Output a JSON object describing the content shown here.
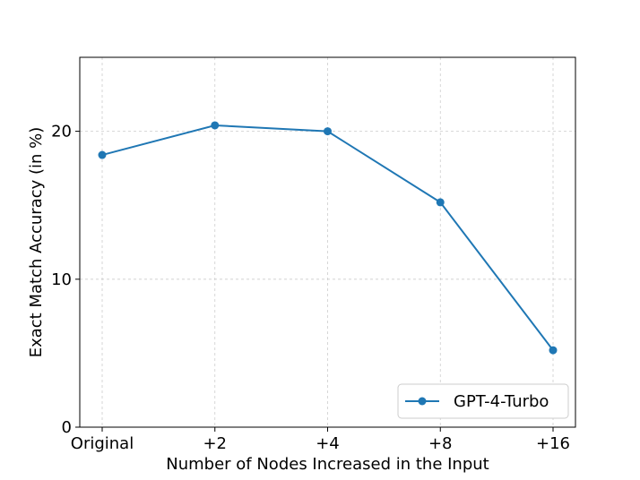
{
  "chart_data": {
    "type": "line",
    "categories": [
      "Original",
      "+2",
      "+4",
      "+8",
      "+16"
    ],
    "series": [
      {
        "name": "GPT-4-Turbo",
        "values": [
          18.4,
          20.4,
          20.0,
          15.2,
          5.2
        ],
        "color": "#1f77b4",
        "marker": "circle"
      }
    ],
    "xlabel": "Number of Nodes Increased in the Input",
    "ylabel": "Exact Match Accuracy (in %)",
    "ylim": [
      0,
      25
    ],
    "yticks": [
      0,
      10,
      20
    ],
    "grid": true,
    "legend_position": "bottom-right"
  }
}
